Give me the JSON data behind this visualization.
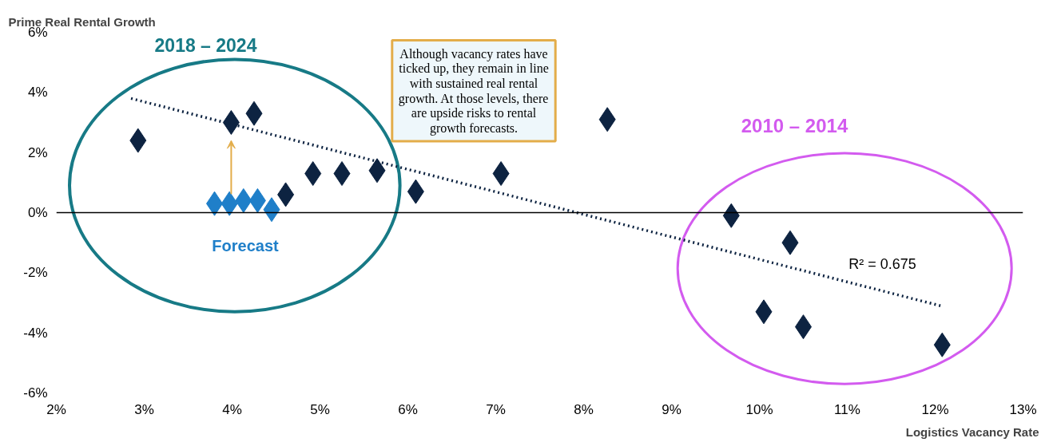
{
  "chart_data": {
    "type": "scatter",
    "xlabel": "Logistics Vacancy Rate",
    "ylabel": "Prime Real Rental Growth",
    "xlim": [
      2,
      13
    ],
    "ylim": [
      -6,
      6
    ],
    "xticks": [
      {
        "value": 2,
        "label": "2%"
      },
      {
        "value": 3,
        "label": "3%"
      },
      {
        "value": 4,
        "label": "4%"
      },
      {
        "value": 5,
        "label": "5%"
      },
      {
        "value": 6,
        "label": "6%"
      },
      {
        "value": 7,
        "label": "7%"
      },
      {
        "value": 8,
        "label": "8%"
      },
      {
        "value": 9,
        "label": "9%"
      },
      {
        "value": 10,
        "label": "10%"
      },
      {
        "value": 11,
        "label": "11%"
      },
      {
        "value": 12,
        "label": "12%"
      },
      {
        "value": 13,
        "label": "13%"
      }
    ],
    "yticks": [
      {
        "value": -6,
        "label": "-6%"
      },
      {
        "value": -4,
        "label": "-4%"
      },
      {
        "value": -2,
        "label": "-2%"
      },
      {
        "value": 0,
        "label": "0%"
      },
      {
        "value": 2,
        "label": "2%"
      },
      {
        "value": 4,
        "label": "4%"
      },
      {
        "value": 6,
        "label": "6%"
      }
    ],
    "marker": "diamond",
    "grid": false,
    "series": [
      {
        "color": "#0d2341",
        "x": [
          2.93,
          3.99,
          4.25,
          4.61,
          4.92,
          5.25,
          5.65,
          6.09,
          7.06,
          8.27,
          9.68,
          10.35,
          10.05,
          10.5,
          12.08
        ],
        "values": [
          2.4,
          3.0,
          3.3,
          0.6,
          1.3,
          1.3,
          1.4,
          0.7,
          1.3,
          3.1,
          -0.1,
          -1.0,
          -3.3,
          -3.8,
          -4.4
        ]
      },
      {
        "color": "#1f7fc9",
        "x": [
          3.8,
          3.97,
          4.13,
          4.29,
          4.45
        ],
        "values": [
          0.3,
          0.3,
          0.4,
          0.4,
          0.1
        ]
      },
      {
        "type": "line",
        "color": "#0d2341",
        "line_style": "dotted",
        "marker": "none",
        "x": [
          2.85,
          12.06
        ],
        "values": [
          3.8,
          -3.1
        ]
      }
    ],
    "ref_lines": [
      {
        "axis": "y",
        "value": 0,
        "color": "#000000"
      }
    ],
    "annotations": [
      "2018 – 2024",
      "2010 – 2014",
      "Forecast",
      "R² = 0.675",
      "Although vacancy rates have ticked up, they remain in line with sustained real rental growth. At those levels, there are upside risks to rental growth forecasts."
    ]
  }
}
